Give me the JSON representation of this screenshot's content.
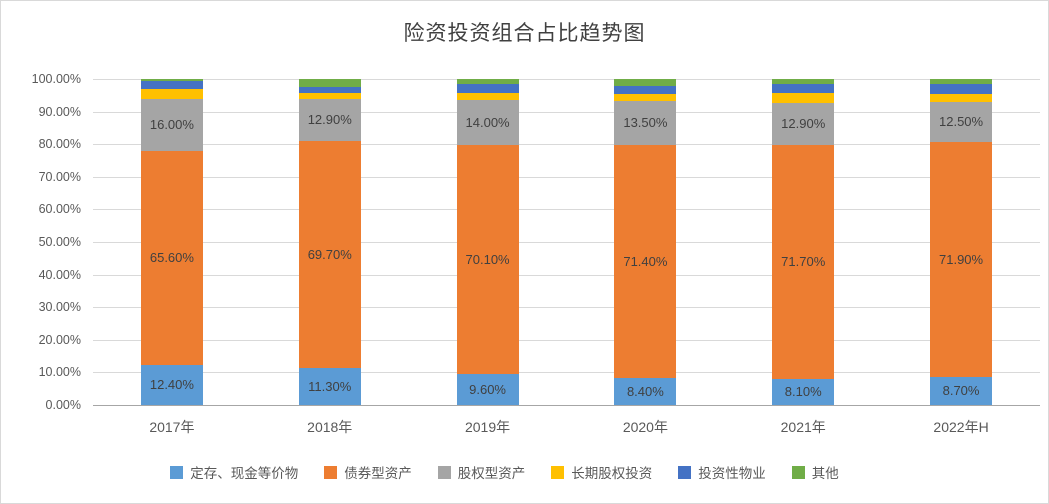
{
  "title": "险资投资组合占比趋势图",
  "chart_data": {
    "type": "bar",
    "stacked": true,
    "percent_stacked": true,
    "title": "险资投资组合占比趋势图",
    "xlabel": "",
    "ylabel": "",
    "ylim": [
      0,
      100
    ],
    "grid": true,
    "legend_position": "bottom",
    "categories": [
      "2017年",
      "2018年",
      "2019年",
      "2020年",
      "2021年",
      "2022年H"
    ],
    "y_ticks": [
      "100.00%",
      "90.00%",
      "80.00%",
      "70.00%",
      "60.00%",
      "50.00%",
      "40.00%",
      "30.00%",
      "20.00%",
      "10.00%",
      "0.00%"
    ],
    "series": [
      {
        "name": "定存、现金等价物",
        "color": "#5B9BD5",
        "show_labels": true,
        "values": [
          12.4,
          11.3,
          9.6,
          8.4,
          8.1,
          8.7
        ],
        "labels": [
          "12.40%",
          "11.30%",
          "9.60%",
          "8.40%",
          "8.10%",
          "8.70%"
        ]
      },
      {
        "name": "债券型资产",
        "color": "#ED7D31",
        "show_labels": true,
        "values": [
          65.6,
          69.7,
          70.1,
          71.4,
          71.7,
          71.9
        ],
        "labels": [
          "65.60%",
          "69.70%",
          "70.10%",
          "71.40%",
          "71.70%",
          "71.90%"
        ]
      },
      {
        "name": "股权型资产",
        "color": "#A5A5A5",
        "show_labels": true,
        "values": [
          16.0,
          12.9,
          14.0,
          13.5,
          12.9,
          12.5
        ],
        "labels": [
          "16.00%",
          "12.90%",
          "14.00%",
          "13.50%",
          "12.90%",
          "12.50%"
        ]
      },
      {
        "name": "长期股权投资",
        "color": "#FFC000",
        "show_labels": false,
        "values": [
          3.0,
          1.8,
          2.0,
          2.2,
          3.0,
          2.4
        ],
        "labels": []
      },
      {
        "name": "投资性物业",
        "color": "#4472C4",
        "show_labels": false,
        "values": [
          2.5,
          1.8,
          2.8,
          2.5,
          2.8,
          3.0
        ],
        "labels": []
      },
      {
        "name": "其他",
        "color": "#70AD47",
        "show_labels": false,
        "values": [
          0.5,
          2.5,
          1.5,
          2.0,
          1.5,
          1.5
        ],
        "labels": []
      }
    ]
  }
}
